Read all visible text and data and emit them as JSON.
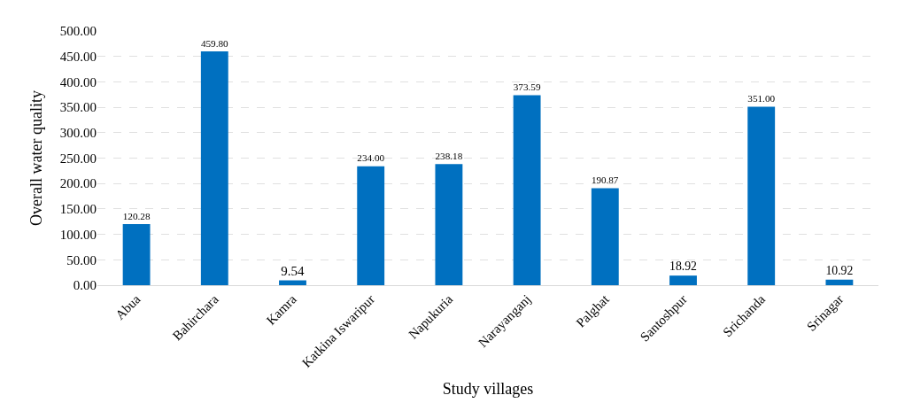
{
  "chart_data": {
    "type": "bar",
    "xlabel": "Study villages",
    "ylabel": "Overall water quality",
    "categories": [
      "Abua",
      "Bahirchara",
      "Kamra",
      "Katkina Iswaripur",
      "Napukuria",
      "Narayanganj",
      "Palghat",
      "Santoshpur",
      "Srichanda",
      "Srinagar"
    ],
    "values": [
      120.28,
      459.8,
      9.54,
      234.0,
      238.18,
      373.59,
      190.87,
      18.92,
      351.0,
      10.92
    ],
    "value_labels": [
      "120.28",
      "459.80",
      "9.54",
      "234.00",
      "238.18",
      "373.59",
      "190.87",
      "18.92",
      "351.00",
      "10.92"
    ],
    "color": "#0070c0",
    "ylim": [
      0,
      500
    ],
    "yticks": [
      {
        "value": 0,
        "label": "0.00"
      },
      {
        "value": 50,
        "label": "50.00"
      },
      {
        "value": 100,
        "label": "100.00"
      },
      {
        "value": 150,
        "label": "150.00"
      },
      {
        "value": 200,
        "label": "200.00"
      },
      {
        "value": 250,
        "label": "250.00"
      },
      {
        "value": 300,
        "label": "300.00"
      },
      {
        "value": 350,
        "label": "350.00"
      },
      {
        "value": 400,
        "label": "400.00"
      },
      {
        "value": 450,
        "label": "450.00"
      },
      {
        "value": 500,
        "label": "500.00"
      }
    ],
    "grid": "y"
  }
}
